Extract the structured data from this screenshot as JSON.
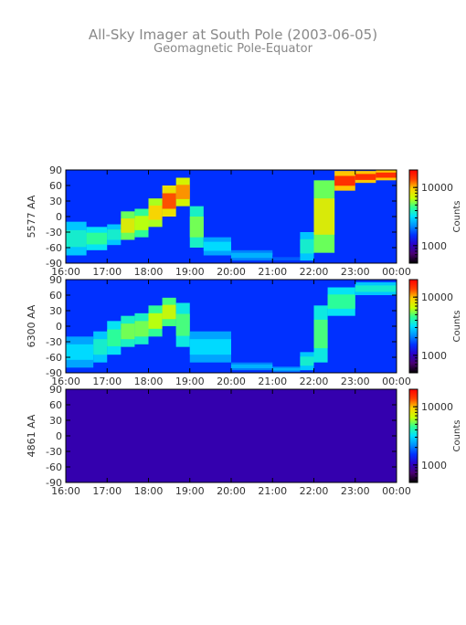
{
  "title": "All-Sky Imager at South Pole (2003-06-05)",
  "subtitle": "Geomagnetic Pole-Equator",
  "chart_data": [
    {
      "type": "heatmap",
      "ylabel": "5577 AA",
      "x_ticks": [
        "16:00",
        "17:00",
        "18:00",
        "19:00",
        "20:00",
        "21:00",
        "22:00",
        "23:00",
        "00:00"
      ],
      "y_ticks": [
        90,
        60,
        30,
        0,
        -30,
        -60,
        -90
      ],
      "ylim": [
        -90,
        90
      ],
      "xlim_hours": [
        16,
        24
      ],
      "colorbar": {
        "label": "Counts",
        "ticks": [
          "10000",
          "1000"
        ],
        "scale": "log",
        "range": [
          500,
          20000
        ]
      },
      "emission": [
        {
          "x": "16:00",
          "lo": -75,
          "hi": -10,
          "level": 0.55
        },
        {
          "x": "16:30",
          "lo": -65,
          "hi": -20,
          "level": 0.6
        },
        {
          "x": "17:00",
          "lo": -55,
          "hi": -15,
          "level": 0.55
        },
        {
          "x": "17:20",
          "lo": -45,
          "hi": 10,
          "level": 0.75
        },
        {
          "x": "17:40",
          "lo": -40,
          "hi": 15,
          "level": 0.7
        },
        {
          "x": "18:00",
          "lo": -20,
          "hi": 35,
          "level": 0.8
        },
        {
          "x": "18:20",
          "lo": 0,
          "hi": 60,
          "level": 0.9
        },
        {
          "x": "18:40",
          "lo": 20,
          "hi": 75,
          "level": 0.85
        },
        {
          "x": "19:00",
          "lo": -60,
          "hi": 20,
          "level": 0.65
        },
        {
          "x": "19:20",
          "lo": -75,
          "hi": -40,
          "level": 0.5
        },
        {
          "x": "20:00",
          "lo": -85,
          "hi": -65,
          "level": 0.45
        },
        {
          "x": "21:00",
          "lo": -88,
          "hi": -75,
          "level": 0.35
        },
        {
          "x": "21:40",
          "lo": -85,
          "hi": -30,
          "level": 0.55
        },
        {
          "x": "22:00",
          "lo": -70,
          "hi": 70,
          "level": 0.75
        },
        {
          "x": "22:30",
          "lo": 50,
          "hi": 88,
          "level": 0.95
        },
        {
          "x": "23:00",
          "lo": 65,
          "hi": 88,
          "level": 0.95
        },
        {
          "x": "23:30",
          "lo": 70,
          "hi": 90,
          "level": 0.95
        },
        {
          "x": "00:00",
          "lo": 70,
          "hi": 90,
          "level": 0.9
        }
      ]
    },
    {
      "type": "heatmap",
      "ylabel": "6300 AA",
      "x_ticks": [
        "16:00",
        "17:00",
        "18:00",
        "19:00",
        "20:00",
        "21:00",
        "22:00",
        "23:00",
        "00:00"
      ],
      "y_ticks": [
        90,
        60,
        30,
        0,
        -30,
        -60,
        -90
      ],
      "ylim": [
        -90,
        90
      ],
      "xlim_hours": [
        16,
        24
      ],
      "colorbar": {
        "label": "Counts",
        "ticks": [
          "10000",
          "1000"
        ],
        "scale": "log",
        "range": [
          500,
          20000
        ]
      },
      "emission": [
        {
          "x": "16:00",
          "lo": -80,
          "hi": -20,
          "level": 0.5
        },
        {
          "x": "16:40",
          "lo": -70,
          "hi": -10,
          "level": 0.55
        },
        {
          "x": "17:00",
          "lo": -55,
          "hi": 10,
          "level": 0.6
        },
        {
          "x": "17:20",
          "lo": -40,
          "hi": 20,
          "level": 0.65
        },
        {
          "x": "17:40",
          "lo": -35,
          "hi": 25,
          "level": 0.65
        },
        {
          "x": "18:00",
          "lo": -20,
          "hi": 40,
          "level": 0.7
        },
        {
          "x": "18:20",
          "lo": 0,
          "hi": 55,
          "level": 0.72
        },
        {
          "x": "18:40",
          "lo": -40,
          "hi": 45,
          "level": 0.62
        },
        {
          "x": "19:00",
          "lo": -70,
          "hi": -10,
          "level": 0.5
        },
        {
          "x": "20:00",
          "lo": -85,
          "hi": -70,
          "level": 0.45
        },
        {
          "x": "21:00",
          "lo": -88,
          "hi": -78,
          "level": 0.45
        },
        {
          "x": "21:40",
          "lo": -85,
          "hi": -50,
          "level": 0.55
        },
        {
          "x": "22:00",
          "lo": -70,
          "hi": 40,
          "level": 0.62
        },
        {
          "x": "22:20",
          "lo": 20,
          "hi": 75,
          "level": 0.6
        },
        {
          "x": "23:00",
          "lo": 60,
          "hi": 85,
          "level": 0.55
        },
        {
          "x": "00:00",
          "lo": 65,
          "hi": 88,
          "level": 0.55
        }
      ]
    },
    {
      "type": "heatmap",
      "ylabel": "4861 AA",
      "x_ticks": [
        "16:00",
        "17:00",
        "18:00",
        "19:00",
        "20:00",
        "21:00",
        "22:00",
        "23:00",
        "00:00"
      ],
      "y_ticks": [
        90,
        60,
        30,
        0,
        -30,
        -60,
        -90
      ],
      "ylim": [
        -90,
        90
      ],
      "xlim_hours": [
        16,
        24
      ],
      "colorbar": {
        "label": "Counts",
        "ticks": [
          "10000",
          "1000"
        ],
        "scale": "log",
        "range": [
          500,
          20000
        ]
      },
      "emission": []
    }
  ],
  "colors": {
    "colormap": [
      "#000000",
      "#4a0070",
      "#2a00c8",
      "#0030ff",
      "#0090ff",
      "#00e0ff",
      "#30ff90",
      "#c8ff00",
      "#ffd000",
      "#ff4000",
      "#ff0000"
    ]
  }
}
